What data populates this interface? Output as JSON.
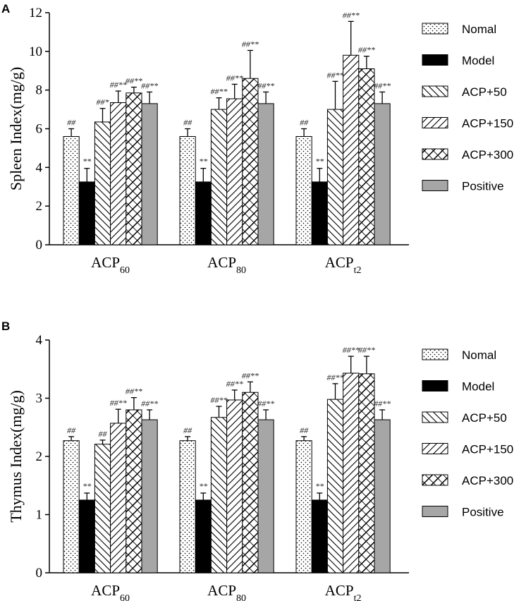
{
  "legend": {
    "items": [
      {
        "name": "Nomal",
        "pattern": "dots"
      },
      {
        "name": "Model",
        "pattern": "solid-black"
      },
      {
        "name": "ACP+50",
        "pattern": "back-diag"
      },
      {
        "name": "ACP+150",
        "pattern": "fwd-diag"
      },
      {
        "name": "ACP+300",
        "pattern": "cross-diag"
      },
      {
        "name": "Positive",
        "pattern": "solid-gray"
      }
    ]
  },
  "colors": {
    "model": "#000000",
    "positive": "#a6a6a6",
    "stroke": "#000000"
  },
  "chart_data": [
    {
      "type": "bar",
      "panel": "A",
      "ylabel": "Spleen Index(mg/g)",
      "ylim": [
        0,
        12
      ],
      "yticks": [
        0,
        2,
        4,
        6,
        8,
        10,
        12
      ],
      "categories": [
        {
          "base": "ACP",
          "sub": "60"
        },
        {
          "base": "ACP",
          "sub": "80"
        },
        {
          "base": "ACP",
          "sub": "t2"
        }
      ],
      "series": [
        {
          "name": "Nomal",
          "values": [
            5.6,
            5.6,
            5.6
          ],
          "errors": [
            0.4,
            0.4,
            0.4
          ],
          "sig": [
            "##",
            "##",
            "##"
          ]
        },
        {
          "name": "Model",
          "values": [
            3.25,
            3.25,
            3.25
          ],
          "errors": [
            0.7,
            0.7,
            0.7
          ],
          "sig": [
            "**",
            "**",
            "**"
          ]
        },
        {
          "name": "ACP+50",
          "values": [
            6.35,
            7.0,
            7.0
          ],
          "errors": [
            0.7,
            0.6,
            1.45
          ],
          "sig": [
            "##*",
            "##**",
            "##**"
          ]
        },
        {
          "name": "ACP+150",
          "values": [
            7.35,
            7.55,
            9.8
          ],
          "errors": [
            0.6,
            0.75,
            1.75
          ],
          "sig": [
            "##**",
            "##**",
            "##**"
          ]
        },
        {
          "name": "ACP+300",
          "values": [
            7.85,
            8.6,
            9.1
          ],
          "errors": [
            0.3,
            1.45,
            0.65
          ],
          "sig": [
            "##**",
            "##**",
            "##**"
          ]
        },
        {
          "name": "Positive",
          "values": [
            7.3,
            7.3,
            7.3
          ],
          "errors": [
            0.6,
            0.6,
            0.6
          ],
          "sig": [
            "##**",
            "##**",
            "##**"
          ]
        }
      ]
    },
    {
      "type": "bar",
      "panel": "B",
      "ylabel": "Thymus Index(mg/g)",
      "ylim": [
        0,
        4
      ],
      "yticks": [
        0,
        1,
        2,
        3,
        4
      ],
      "categories": [
        {
          "base": "ACP",
          "sub": "60"
        },
        {
          "base": "ACP",
          "sub": "80"
        },
        {
          "base": "ACP",
          "sub": "t2"
        }
      ],
      "series": [
        {
          "name": "Nomal",
          "values": [
            2.27,
            2.27,
            2.27
          ],
          "errors": [
            0.07,
            0.07,
            0.07
          ],
          "sig": [
            "##",
            "##",
            "##"
          ]
        },
        {
          "name": "Model",
          "values": [
            1.25,
            1.25,
            1.25
          ],
          "errors": [
            0.12,
            0.12,
            0.12
          ],
          "sig": [
            "**",
            "**",
            "**"
          ]
        },
        {
          "name": "ACP+50",
          "values": [
            2.21,
            2.67,
            2.98
          ],
          "errors": [
            0.07,
            0.19,
            0.27
          ],
          "sig": [
            "##",
            "##**",
            "##**"
          ]
        },
        {
          "name": "ACP+150",
          "values": [
            2.57,
            2.97,
            3.43
          ],
          "errors": [
            0.24,
            0.17,
            0.29
          ],
          "sig": [
            "##**",
            "##**",
            "##**"
          ]
        },
        {
          "name": "ACP+300",
          "values": [
            2.8,
            3.1,
            3.42
          ],
          "errors": [
            0.21,
            0.18,
            0.3
          ],
          "sig": [
            "##**",
            "##**",
            "##**"
          ]
        },
        {
          "name": "Positive",
          "values": [
            2.63,
            2.63,
            2.63
          ],
          "errors": [
            0.17,
            0.17,
            0.17
          ],
          "sig": [
            "##**",
            "##**",
            "##**"
          ]
        }
      ]
    }
  ]
}
